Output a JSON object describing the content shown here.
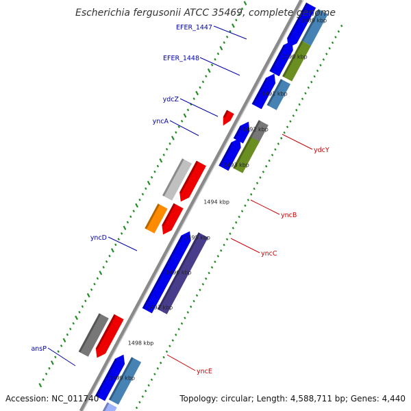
{
  "title": "Escherichia fergusonii ATCC 35469, complete genome",
  "footer": {
    "accession": "Accession: NC_011740",
    "summary": "Topology: circular; Length: 4,588,711 bp; Genes: 4,440"
  },
  "ticks": [
    "1489 kbp",
    "1490 kbp",
    "1491 kbp",
    "1492 kbp",
    "1493 kbp",
    "1494 kbp",
    "1495 kbp",
    "1496 kbp",
    "1497 kbp",
    "1498 kbp",
    "1499 kbp"
  ],
  "genes": [
    {
      "name": "EFER_1447",
      "color": "#0000aa",
      "strand": "forward"
    },
    {
      "name": "EFER_1448",
      "color": "#0000aa",
      "strand": "forward"
    },
    {
      "name": "ydcZ",
      "color": "#0000aa",
      "strand": "forward"
    },
    {
      "name": "yncA",
      "color": "#0000aa",
      "strand": "forward"
    },
    {
      "name": "ydcY",
      "color": "#cc0000",
      "strand": "reverse"
    },
    {
      "name": "yncB",
      "color": "#cc0000",
      "strand": "reverse"
    },
    {
      "name": "yncC",
      "color": "#cc0000",
      "strand": "reverse"
    },
    {
      "name": "yncD",
      "color": "#0000aa",
      "strand": "forward"
    },
    {
      "name": "yncE",
      "color": "#cc0000",
      "strand": "reverse"
    },
    {
      "name": "ansP",
      "color": "#0000aa",
      "strand": "forward"
    }
  ],
  "colors": {
    "forward_cds": "#0000ee",
    "reverse_cds": "#ee0000",
    "backbone": "#888888",
    "gc_dots": "#228b22",
    "cog_blue": "#4682b4",
    "cog_olive": "#6b8e23",
    "cog_gray": "#777777",
    "cog_lightgray": "#c0c0c0",
    "cog_orange": "#ff8c00",
    "cog_purple": "#483d8b"
  }
}
